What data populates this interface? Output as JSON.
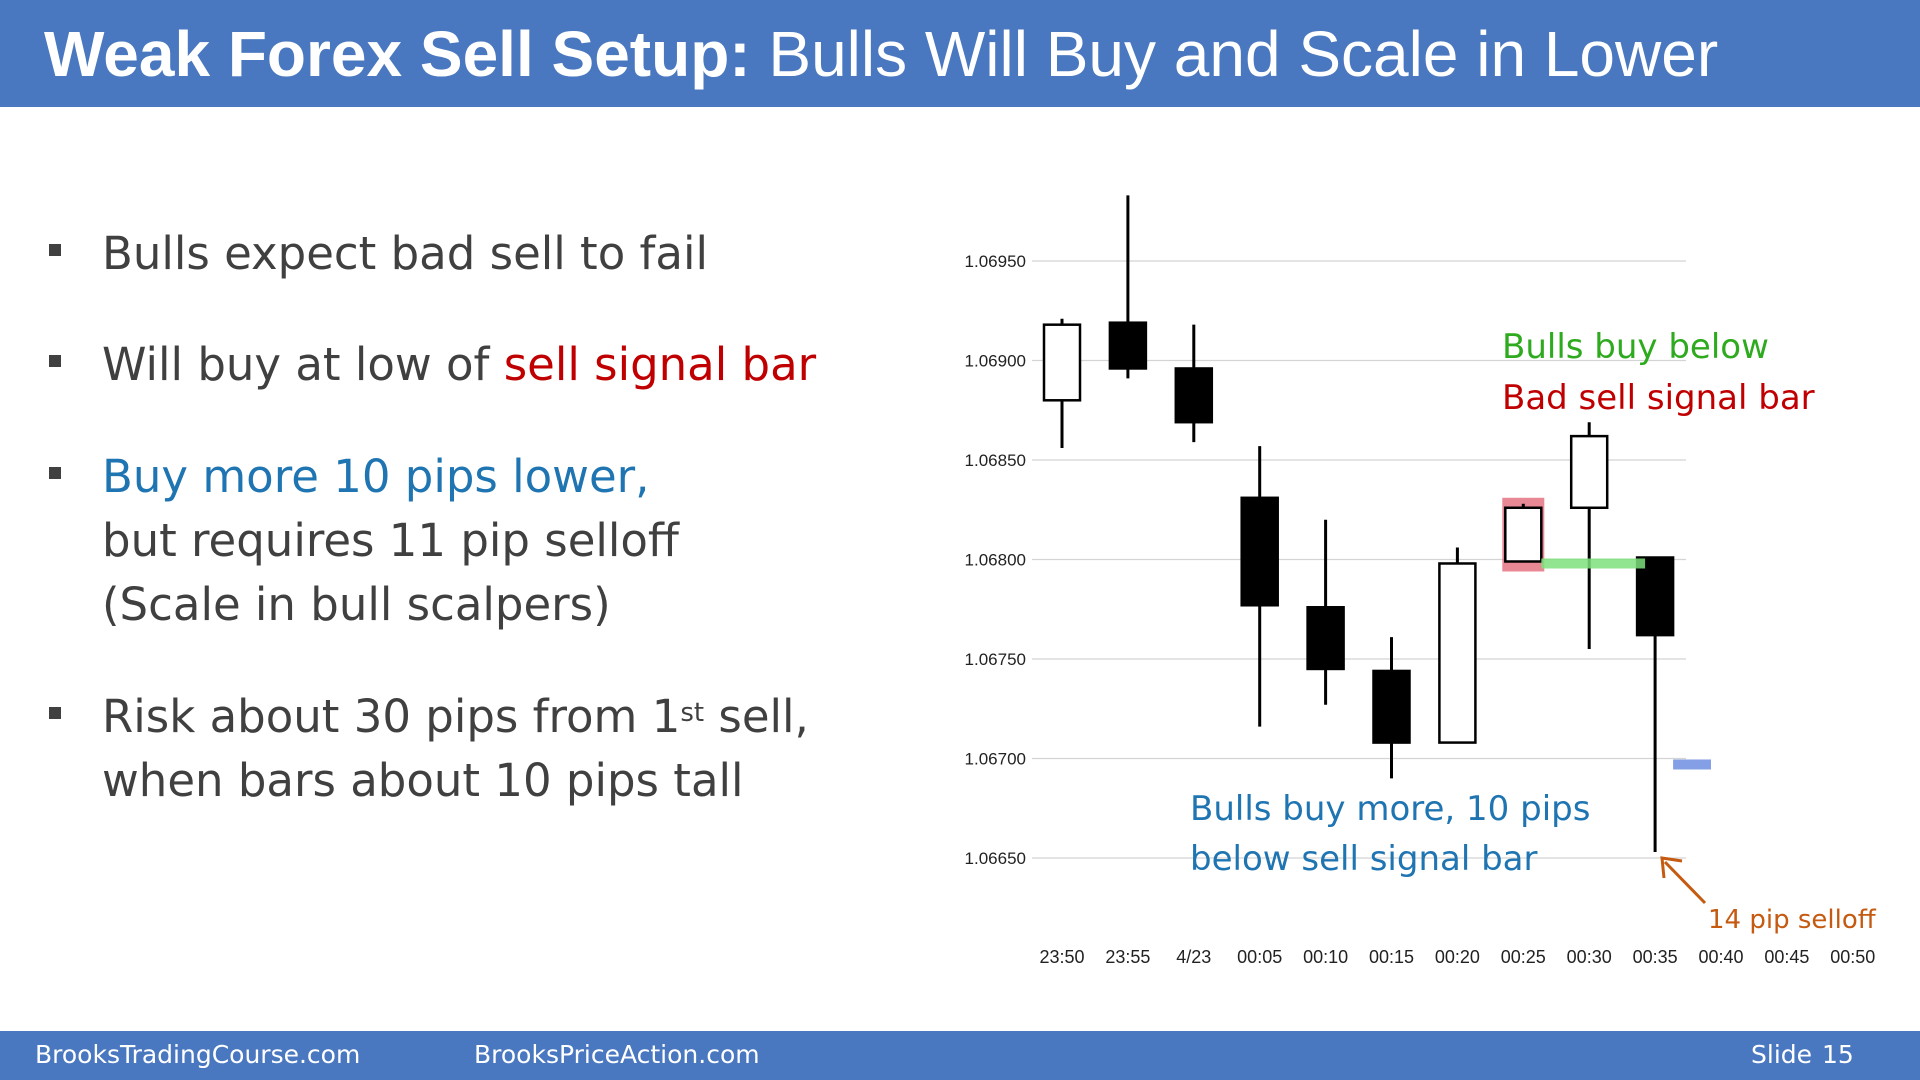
{
  "header": {
    "title_bold": "Weak Forex Sell Setup:",
    "title_rest": " Bulls Will Buy and Scale in Lower"
  },
  "bullets": {
    "b1": "Bulls expect bad sell to fail",
    "b2_prefix": "Will buy at low of ",
    "b2_highlight": "sell signal bar",
    "b3_line1": "Buy more 10 pips lower,",
    "b3_line2": "but requires 11 pip selloff",
    "b3_line3": "(Scale in bull scalpers)",
    "b4_line1_prefix": "Risk about 30 pips from 1",
    "b4_line1_sup": "st",
    "b4_line1_suffix": " sell,",
    "b4_line2": "when bars about 10 pips tall"
  },
  "colors": {
    "header_bg": "#4a78c0",
    "text_gray": "#404040",
    "red": "#c00000",
    "blue": "#1f74b2",
    "green": "#2eaa1e",
    "orange": "#c55a11",
    "signal_bar_highlight": "#e06070",
    "green_line": "#7ee07e",
    "blue_line": "#6f8ee0"
  },
  "chart_data": {
    "type": "candlestick",
    "title": "",
    "xlabel": "",
    "ylabel": "",
    "ylim": [
      1.0664,
      1.0698
    ],
    "yticks": [
      1.0665,
      1.067,
      1.0675,
      1.068,
      1.0685,
      1.069,
      1.0695
    ],
    "ytick_labels": [
      "1.06650",
      "1.06700",
      "1.06750",
      "1.06800",
      "1.06850",
      "1.06900",
      "1.06950"
    ],
    "grid": true,
    "categories": [
      "23:50",
      "23:55",
      "4/23",
      "00:05",
      "00:10",
      "00:15",
      "00:20",
      "00:25",
      "00:30",
      "00:35",
      "00:40",
      "00:45",
      "00:50"
    ],
    "candles": [
      {
        "x": "23:50",
        "open": 1.0688,
        "high": 1.06921,
        "low": 1.06856,
        "close": 1.06918
      },
      {
        "x": "23:55",
        "open": 1.06919,
        "high": 1.06983,
        "low": 1.06891,
        "close": 1.06896
      },
      {
        "x": "4/23",
        "open": 1.06896,
        "high": 1.06918,
        "low": 1.06859,
        "close": 1.06869
      },
      {
        "x": "00:05",
        "open": 1.06831,
        "high": 1.06857,
        "low": 1.06716,
        "close": 1.06777
      },
      {
        "x": "00:10",
        "open": 1.06776,
        "high": 1.0682,
        "low": 1.06727,
        "close": 1.06745
      },
      {
        "x": "00:15",
        "open": 1.06744,
        "high": 1.06761,
        "low": 1.0669,
        "close": 1.06708
      },
      {
        "x": "00:20",
        "open": 1.06708,
        "high": 1.06806,
        "low": 1.06708,
        "close": 1.06798
      },
      {
        "x": "00:25",
        "open": 1.06799,
        "high": 1.06828,
        "low": 1.06799,
        "close": 1.06826
      },
      {
        "x": "00:30",
        "open": 1.06826,
        "high": 1.06869,
        "low": 1.06755,
        "close": 1.06862
      },
      {
        "x": "00:35",
        "open": 1.06801,
        "high": 1.06801,
        "low": 1.06653,
        "close": 1.06762
      }
    ],
    "signal_bar": "00:25",
    "levels": [
      {
        "name": "bull-buy-level",
        "y": 1.06798,
        "x_from": "00:25",
        "x_to": "00:35",
        "color": "#7ee07e"
      },
      {
        "name": "scale-in-level",
        "y": 1.06697,
        "x_from": "00:35",
        "x_to": "00:40",
        "color": "#6f8ee0"
      }
    ],
    "annotations": {
      "green_label": "Bulls buy below",
      "red_label": "Bad sell signal bar",
      "blue_label_line1": "Bulls buy more, 10 pips",
      "blue_label_line2": "below sell signal bar",
      "orange_label": "14 pip selloff"
    }
  },
  "footer": {
    "left": "BrooksTradingCourse.com",
    "center": "BrooksPriceAction.com",
    "slide_label": "Slide",
    "slide_number": "15"
  }
}
